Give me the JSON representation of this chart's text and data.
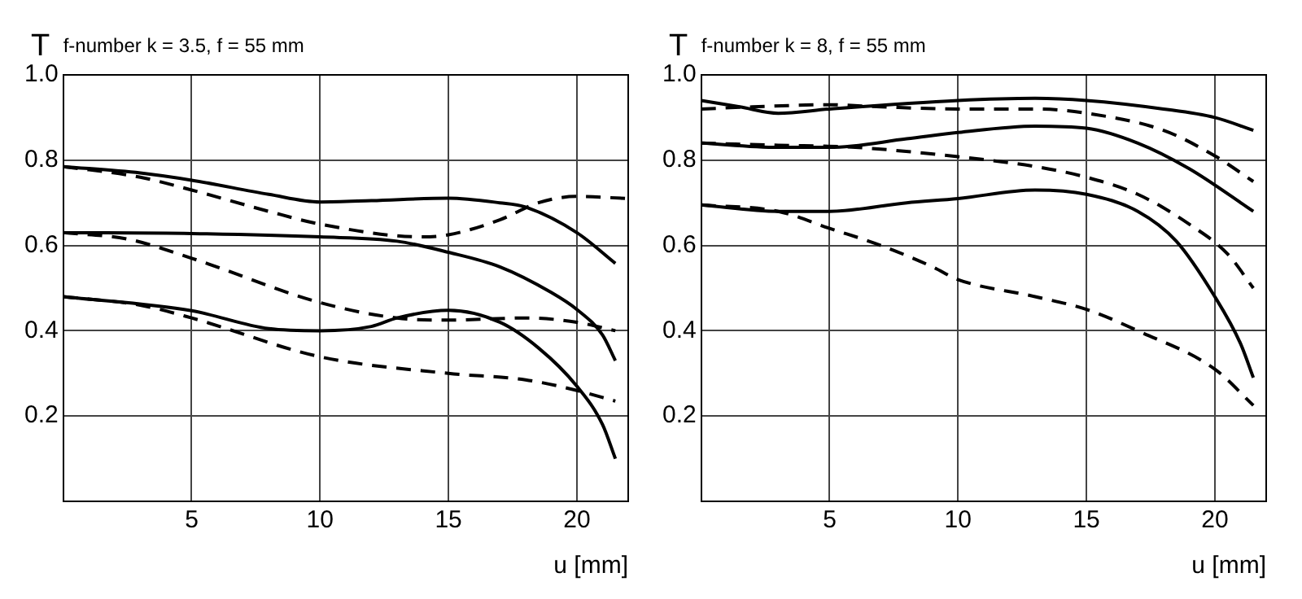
{
  "chart_data": [
    {
      "type": "line",
      "title": "f-number k = 3.5, f = 55 mm",
      "ylabel": "T",
      "xlabel": "u [mm]",
      "xlim": [
        0,
        22
      ],
      "xticks": [
        5,
        10,
        15,
        20
      ],
      "ylim": [
        0,
        1
      ],
      "yticks": [
        0.2,
        0.4,
        0.6,
        0.8,
        {
          "value": 1,
          "label": "1.0"
        }
      ],
      "grid": true,
      "legend": false,
      "marker": "none",
      "series": [
        {
          "color": "#000000",
          "line_style": "solid",
          "x": [
            0,
            3,
            5,
            8,
            10,
            12,
            15,
            17,
            18,
            20,
            21.5
          ],
          "values": [
            0.785,
            0.77,
            0.753,
            0.72,
            0.702,
            0.705,
            0.711,
            0.7,
            0.69,
            0.63,
            0.558
          ]
        },
        {
          "color": "#000000",
          "line_style": "dashed",
          "x": [
            0,
            3,
            5,
            8,
            10,
            14,
            15,
            17,
            18.5,
            20,
            22
          ],
          "values": [
            0.785,
            0.76,
            0.73,
            0.68,
            0.65,
            0.62,
            0.625,
            0.66,
            0.7,
            0.715,
            0.71
          ]
        },
        {
          "color": "#000000",
          "line_style": "solid",
          "x": [
            0,
            5,
            10,
            13,
            15,
            17,
            19,
            20,
            21,
            21.5
          ],
          "values": [
            0.63,
            0.628,
            0.62,
            0.61,
            0.584,
            0.55,
            0.49,
            0.45,
            0.39,
            0.33
          ]
        },
        {
          "color": "#000000",
          "line_style": "dashed",
          "x": [
            0,
            2.5,
            5,
            10,
            13,
            15,
            18,
            20,
            21.5
          ],
          "values": [
            0.63,
            0.615,
            0.57,
            0.466,
            0.43,
            0.425,
            0.43,
            0.42,
            0.4
          ]
        },
        {
          "color": "#000000",
          "line_style": "solid",
          "x": [
            0,
            5,
            8,
            10,
            12,
            13,
            15,
            17,
            18.5,
            20,
            21,
            21.5
          ],
          "values": [
            0.48,
            0.447,
            0.405,
            0.4,
            0.41,
            0.43,
            0.448,
            0.42,
            0.36,
            0.27,
            0.18,
            0.1
          ]
        },
        {
          "color": "#000000",
          "line_style": "dashed",
          "x": [
            0,
            3,
            5,
            10,
            15,
            18,
            20,
            21.5
          ],
          "values": [
            0.48,
            0.46,
            0.43,
            0.339,
            0.3,
            0.285,
            0.26,
            0.235
          ]
        }
      ]
    },
    {
      "type": "line",
      "title": "f-number k = 8, f = 55 mm",
      "ylabel": "T",
      "xlabel": "u [mm]",
      "xlim": [
        0,
        22
      ],
      "xticks": [
        5,
        10,
        15,
        20
      ],
      "ylim": [
        0,
        1
      ],
      "yticks": [
        0.2,
        0.4,
        0.6,
        0.8,
        {
          "value": 1,
          "label": "1.0"
        }
      ],
      "grid": true,
      "legend": false,
      "marker": "none",
      "series": [
        {
          "color": "#000000",
          "line_style": "solid",
          "x": [
            0,
            1.5,
            3,
            5,
            10,
            13,
            15,
            18,
            20,
            21.5
          ],
          "values": [
            0.94,
            0.925,
            0.91,
            0.92,
            0.94,
            0.945,
            0.94,
            0.92,
            0.9,
            0.87
          ]
        },
        {
          "color": "#000000",
          "line_style": "dashed",
          "x": [
            0,
            2,
            5,
            7,
            10,
            13,
            15,
            18,
            20,
            21.5
          ],
          "values": [
            0.92,
            0.925,
            0.93,
            0.925,
            0.92,
            0.92,
            0.91,
            0.87,
            0.81,
            0.75
          ]
        },
        {
          "color": "#000000",
          "line_style": "solid",
          "x": [
            0,
            3,
            5,
            8,
            10,
            13,
            15,
            17,
            19,
            21.5
          ],
          "values": [
            0.84,
            0.83,
            0.83,
            0.85,
            0.865,
            0.88,
            0.875,
            0.84,
            0.78,
            0.68
          ]
        },
        {
          "color": "#000000",
          "line_style": "dashed",
          "x": [
            0,
            3,
            6,
            10,
            13,
            15,
            17,
            19,
            20.5,
            21.5
          ],
          "values": [
            0.84,
            0.835,
            0.83,
            0.808,
            0.785,
            0.76,
            0.72,
            0.65,
            0.58,
            0.5
          ]
        },
        {
          "color": "#000000",
          "line_style": "solid",
          "x": [
            0,
            3,
            5,
            8,
            10,
            13,
            15,
            17,
            18.5,
            20,
            21,
            21.5
          ],
          "values": [
            0.695,
            0.68,
            0.68,
            0.7,
            0.71,
            0.73,
            0.72,
            0.68,
            0.61,
            0.48,
            0.37,
            0.29
          ]
        },
        {
          "color": "#000000",
          "line_style": "dashed",
          "x": [
            0,
            3,
            5,
            7,
            9,
            10,
            13,
            15,
            17,
            20,
            21.5
          ],
          "values": [
            0.695,
            0.68,
            0.64,
            0.6,
            0.55,
            0.52,
            0.48,
            0.45,
            0.4,
            0.31,
            0.225
          ]
        }
      ]
    }
  ]
}
